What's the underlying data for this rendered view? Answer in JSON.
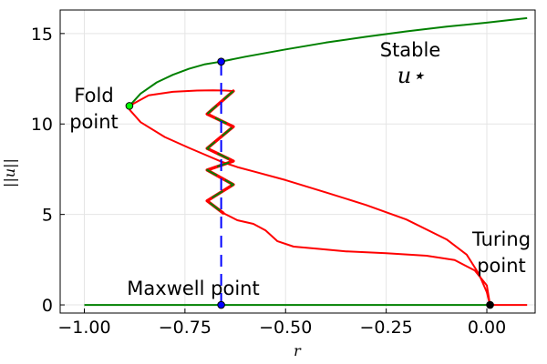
{
  "chart_data": {
    "type": "line",
    "title": "",
    "xlabel": "r",
    "ylabel": "||u||",
    "xlim": [
      -1.06,
      0.12
    ],
    "ylim": [
      -0.45,
      16.3
    ],
    "grid": true,
    "legend": "none",
    "xticks": [
      -1.0,
      -0.75,
      -0.5,
      -0.25,
      0.0
    ],
    "xtick_labels": [
      "−1.00",
      "−0.75",
      "−0.50",
      "−0.25",
      "0.00"
    ],
    "yticks": [
      0,
      5,
      10,
      15
    ],
    "ytick_labels": [
      "0",
      "5",
      "10",
      "15"
    ],
    "colors": {
      "stable": "#008000",
      "unstable": "#ff0000",
      "maxwell": "#0000ff",
      "fold": "#00ff00",
      "turing": "#000000"
    },
    "series": [
      {
        "style": "stable",
        "x": [
          -0.888,
          -0.86,
          -0.82,
          -0.78,
          -0.74,
          -0.7,
          -0.66,
          -0.6,
          -0.5,
          -0.4,
          -0.3,
          -0.2,
          -0.1,
          0.0,
          0.1
        ],
        "y": [
          11.0,
          11.68,
          12.3,
          12.72,
          13.05,
          13.3,
          13.45,
          13.72,
          14.12,
          14.5,
          14.82,
          15.12,
          15.38,
          15.6,
          15.85
        ]
      },
      {
        "style": "stable",
        "x": [
          -1.0,
          0.0
        ],
        "y": [
          0,
          0
        ]
      },
      {
        "style": "unstable",
        "x": [
          -0.888,
          -0.86,
          -0.8,
          -0.74,
          -0.7,
          -0.66,
          -0.62,
          -0.58,
          -0.5,
          -0.4,
          -0.3,
          -0.2,
          -0.1,
          -0.05,
          -0.02,
          0.0,
          0.008
        ],
        "y": [
          10.8,
          10.1,
          9.28,
          8.68,
          8.3,
          7.92,
          7.62,
          7.38,
          6.9,
          6.22,
          5.52,
          4.72,
          3.62,
          2.78,
          1.72,
          0.7,
          0.0
        ]
      },
      {
        "style": "unstable",
        "x": [
          0.008,
          0.1
        ],
        "y": [
          0,
          0
        ]
      },
      {
        "style": "unstable",
        "x": [
          -0.888,
          -0.84,
          -0.78,
          -0.72,
          -0.68,
          -0.65,
          -0.63
        ],
        "y": [
          11.0,
          11.58,
          11.78,
          11.85,
          11.86,
          11.85,
          11.82
        ]
      },
      {
        "style": "snake",
        "x": [
          -0.63,
          -0.695,
          -0.63,
          -0.695,
          -0.63,
          -0.695,
          -0.63,
          -0.695,
          -0.655
        ],
        "y": [
          11.82,
          10.55,
          9.85,
          8.65,
          7.95,
          7.45,
          6.65,
          5.75,
          5.08
        ]
      },
      {
        "style": "unstable",
        "x": [
          -0.655,
          -0.62,
          -0.58,
          -0.55,
          -0.52,
          -0.48,
          -0.42,
          -0.35,
          -0.25,
          -0.15,
          -0.08,
          -0.03,
          0.0,
          0.008
        ],
        "y": [
          5.08,
          4.68,
          4.48,
          4.12,
          3.52,
          3.22,
          3.1,
          2.96,
          2.86,
          2.72,
          2.48,
          1.9,
          1.08,
          0.0
        ]
      }
    ],
    "maxwell_line": {
      "x": -0.66,
      "y_from": 0,
      "y_to": 13.45
    },
    "points": [
      {
        "name": "fold",
        "x": -0.888,
        "y": 11.0
      },
      {
        "name": "maxwell-top",
        "x": -0.66,
        "y": 13.45
      },
      {
        "name": "maxwell-bottom",
        "x": -0.66,
        "y": 0
      },
      {
        "name": "turing",
        "x": 0.008,
        "y": 0
      }
    ],
    "annotations": {
      "fold_line1": "Fold",
      "fold_line2": "point",
      "stable": "Stable",
      "u_star": "u⋆",
      "turing_line1": "Turing",
      "turing_line2": "point",
      "maxwell": "Maxwell point"
    }
  }
}
